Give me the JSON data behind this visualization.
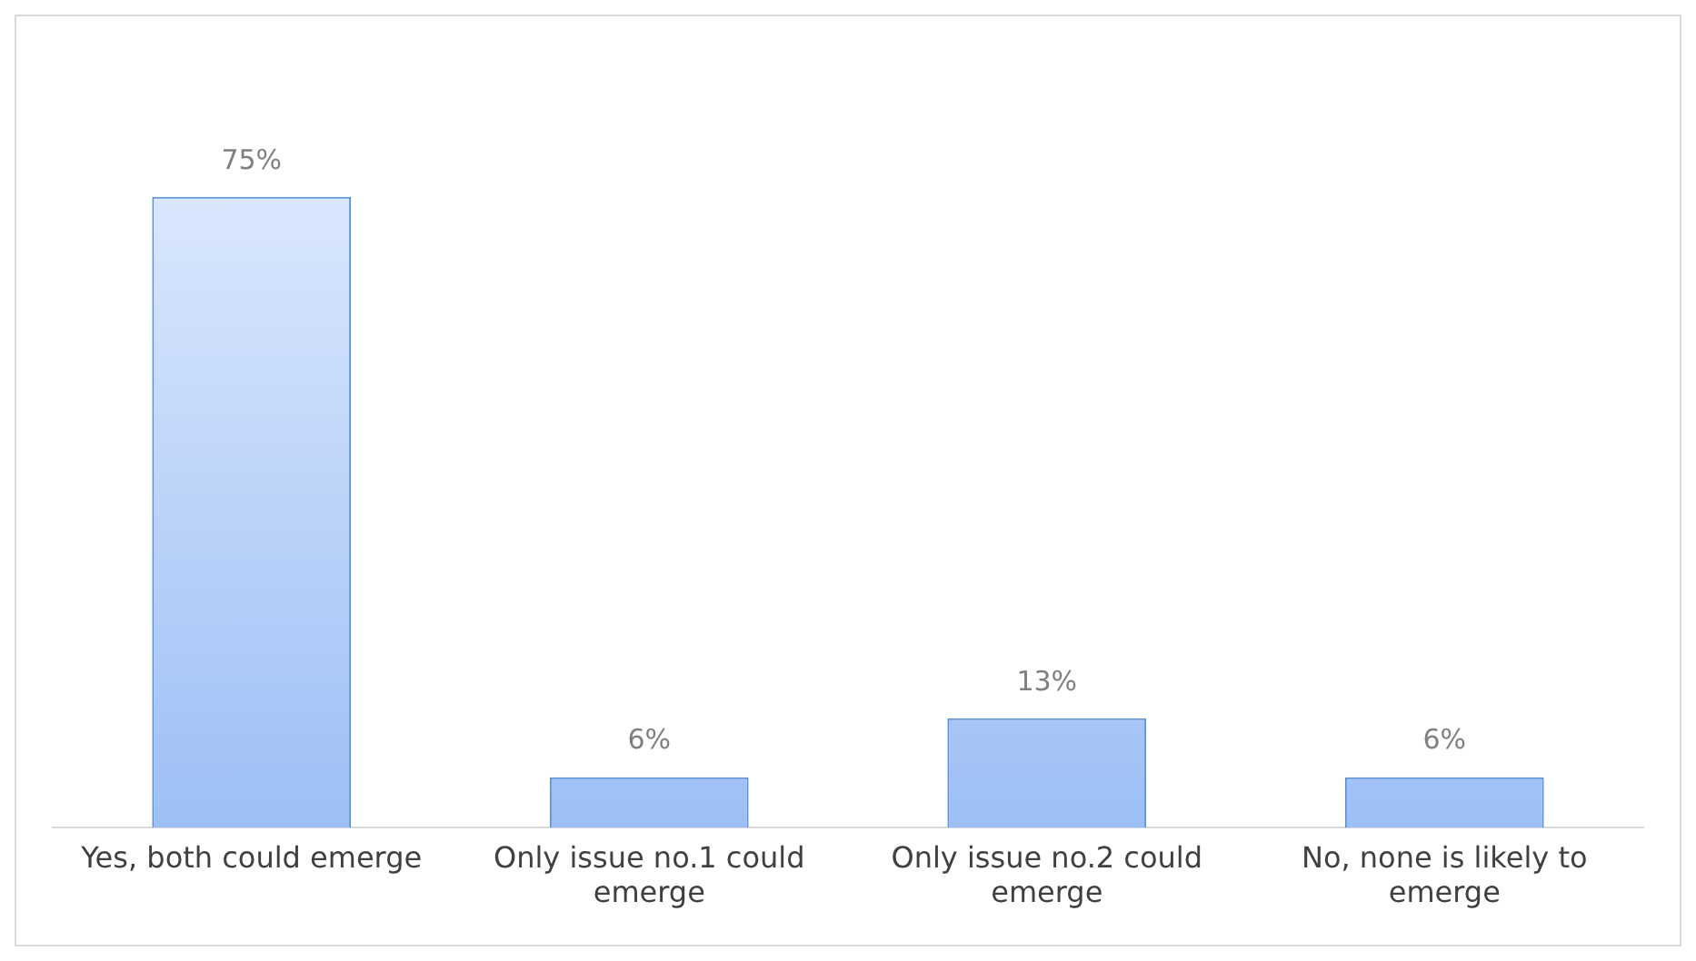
{
  "chart_data": {
    "type": "bar",
    "categories": [
      "Yes, both could emerge",
      "Only issue no.1 could emerge",
      "Only issue no.2 could emerge",
      "No, none is likely to emerge"
    ],
    "values": [
      75,
      6,
      13,
      6
    ],
    "value_labels": [
      "75%",
      "6%",
      "13%",
      "6%"
    ],
    "color": "#9dbff5",
    "grid": false,
    "legend": false
  }
}
